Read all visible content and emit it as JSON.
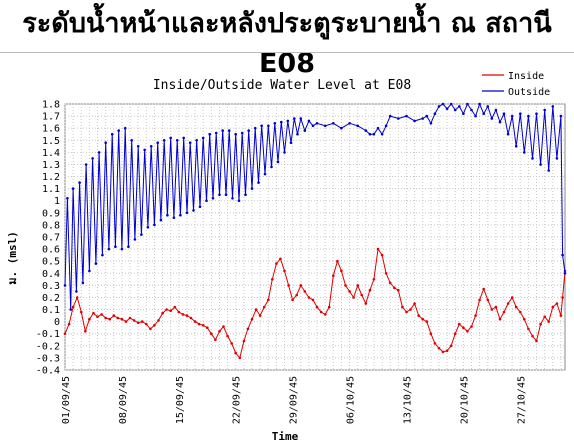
{
  "page": {
    "title": "ระดับน้ำหน้าและหลังประตูระบายน้ำ ณ สถานี E08"
  },
  "chart_data": {
    "type": "line",
    "title": "Inside/Outside Water Level at E08",
    "xlabel": "Time",
    "ylabel": "ม. (msl)",
    "ylim": [
      -0.4,
      1.8
    ],
    "y_ticks": [
      "-0.4",
      "-0.3",
      "-0.2",
      "-0.1",
      "0",
      "0.1",
      "0.2",
      "0.3",
      "0.4",
      "0.5",
      "0.6",
      "0.7",
      "0.8",
      "0.9",
      "1",
      "1.1",
      "1.2",
      "1.3",
      "1.4",
      "1.5",
      "1.6",
      "1.7",
      "1.8"
    ],
    "x_ticks": [
      "01/09/45",
      "08/09/45",
      "15/09/45",
      "22/09/45",
      "29/09/45",
      "06/10/45",
      "13/10/45",
      "20/10/45",
      "27/10/45"
    ],
    "x_range_days": [
      0,
      61.5
    ],
    "grid": true,
    "legend_position": "top-right",
    "series": [
      {
        "name": "Inside",
        "color": "#e00000",
        "points": [
          [
            0.0,
            -0.1
          ],
          [
            0.5,
            -0.02
          ],
          [
            1.0,
            0.12
          ],
          [
            1.5,
            0.2
          ],
          [
            2.0,
            0.08
          ],
          [
            2.5,
            -0.08
          ],
          [
            3.0,
            0.02
          ],
          [
            3.5,
            0.07
          ],
          [
            4.0,
            0.04
          ],
          [
            4.5,
            0.06
          ],
          [
            5.0,
            0.03
          ],
          [
            5.5,
            0.02
          ],
          [
            6.0,
            0.05
          ],
          [
            6.5,
            0.03
          ],
          [
            7.0,
            0.02
          ],
          [
            7.5,
            0.0
          ],
          [
            8.0,
            0.03
          ],
          [
            8.5,
            0.01
          ],
          [
            9.0,
            -0.01
          ],
          [
            9.5,
            0.0
          ],
          [
            10.0,
            -0.02
          ],
          [
            10.5,
            -0.06
          ],
          [
            11.0,
            -0.03
          ],
          [
            11.5,
            0.01
          ],
          [
            12.0,
            0.07
          ],
          [
            12.5,
            0.1
          ],
          [
            13.0,
            0.09
          ],
          [
            13.5,
            0.12
          ],
          [
            14.0,
            0.08
          ],
          [
            14.5,
            0.06
          ],
          [
            15.0,
            0.05
          ],
          [
            15.5,
            0.03
          ],
          [
            16.0,
            0.0
          ],
          [
            16.5,
            -0.02
          ],
          [
            17.0,
            -0.03
          ],
          [
            17.5,
            -0.05
          ],
          [
            18.0,
            -0.1
          ],
          [
            18.5,
            -0.15
          ],
          [
            19.0,
            -0.08
          ],
          [
            19.5,
            -0.04
          ],
          [
            20.0,
            -0.12
          ],
          [
            20.5,
            -0.18
          ],
          [
            21.0,
            -0.26
          ],
          [
            21.5,
            -0.3
          ],
          [
            22.0,
            -0.16
          ],
          [
            22.5,
            -0.06
          ],
          [
            23.0,
            0.02
          ],
          [
            23.5,
            0.1
          ],
          [
            24.0,
            0.05
          ],
          [
            24.5,
            0.12
          ],
          [
            25.0,
            0.18
          ],
          [
            25.5,
            0.35
          ],
          [
            26.0,
            0.48
          ],
          [
            26.5,
            0.52
          ],
          [
            27.0,
            0.42
          ],
          [
            27.5,
            0.3
          ],
          [
            28.0,
            0.18
          ],
          [
            28.5,
            0.22
          ],
          [
            29.0,
            0.3
          ],
          [
            29.5,
            0.25
          ],
          [
            30.0,
            0.2
          ],
          [
            30.5,
            0.18
          ],
          [
            31.0,
            0.12
          ],
          [
            31.5,
            0.08
          ],
          [
            32.0,
            0.06
          ],
          [
            32.5,
            0.12
          ],
          [
            33.0,
            0.38
          ],
          [
            33.5,
            0.5
          ],
          [
            34.0,
            0.42
          ],
          [
            34.5,
            0.3
          ],
          [
            35.0,
            0.25
          ],
          [
            35.5,
            0.2
          ],
          [
            36.0,
            0.3
          ],
          [
            36.5,
            0.22
          ],
          [
            37.0,
            0.15
          ],
          [
            37.5,
            0.26
          ],
          [
            38.0,
            0.35
          ],
          [
            38.5,
            0.6
          ],
          [
            39.0,
            0.55
          ],
          [
            39.5,
            0.4
          ],
          [
            40.0,
            0.32
          ],
          [
            40.5,
            0.28
          ],
          [
            41.0,
            0.26
          ],
          [
            41.5,
            0.12
          ],
          [
            42.0,
            0.08
          ],
          [
            42.5,
            0.1
          ],
          [
            43.0,
            0.15
          ],
          [
            43.5,
            0.05
          ],
          [
            44.0,
            0.02
          ],
          [
            44.5,
            0.0
          ],
          [
            45.0,
            -0.1
          ],
          [
            45.5,
            -0.18
          ],
          [
            46.0,
            -0.22
          ],
          [
            46.5,
            -0.25
          ],
          [
            47.0,
            -0.24
          ],
          [
            47.5,
            -0.2
          ],
          [
            48.0,
            -0.1
          ],
          [
            48.5,
            -0.02
          ],
          [
            49.0,
            -0.05
          ],
          [
            49.5,
            -0.08
          ],
          [
            50.0,
            -0.04
          ],
          [
            50.5,
            0.05
          ],
          [
            51.0,
            0.18
          ],
          [
            51.5,
            0.27
          ],
          [
            52.0,
            0.18
          ],
          [
            52.5,
            0.1
          ],
          [
            53.0,
            0.12
          ],
          [
            53.5,
            0.02
          ],
          [
            54.0,
            0.08
          ],
          [
            54.5,
            0.15
          ],
          [
            55.0,
            0.2
          ],
          [
            55.5,
            0.12
          ],
          [
            56.0,
            0.08
          ],
          [
            56.5,
            0.02
          ],
          [
            57.0,
            -0.06
          ],
          [
            57.5,
            -0.12
          ],
          [
            58.0,
            -0.16
          ],
          [
            58.5,
            -0.02
          ],
          [
            59.0,
            0.04
          ],
          [
            59.5,
            0.0
          ],
          [
            60.0,
            0.12
          ],
          [
            60.5,
            0.15
          ],
          [
            61.0,
            0.05
          ],
          [
            61.2,
            0.2
          ],
          [
            61.5,
            0.42
          ]
        ]
      },
      {
        "name": "Outside",
        "color": "#0000d0",
        "points": [
          [
            0.0,
            0.3
          ],
          [
            0.3,
            1.02
          ],
          [
            0.7,
            0.1
          ],
          [
            1.0,
            1.1
          ],
          [
            1.4,
            0.25
          ],
          [
            1.8,
            1.15
          ],
          [
            2.2,
            0.32
          ],
          [
            2.6,
            1.3
          ],
          [
            3.0,
            0.42
          ],
          [
            3.4,
            1.35
          ],
          [
            3.8,
            0.48
          ],
          [
            4.2,
            1.4
          ],
          [
            4.6,
            0.55
          ],
          [
            5.0,
            1.48
          ],
          [
            5.4,
            0.6
          ],
          [
            5.8,
            1.55
          ],
          [
            6.2,
            0.62
          ],
          [
            6.6,
            1.58
          ],
          [
            7.0,
            0.6
          ],
          [
            7.4,
            1.6
          ],
          [
            7.8,
            0.62
          ],
          [
            8.2,
            1.5
          ],
          [
            8.6,
            0.68
          ],
          [
            9.0,
            1.45
          ],
          [
            9.4,
            0.72
          ],
          [
            9.8,
            1.42
          ],
          [
            10.2,
            0.78
          ],
          [
            10.6,
            1.45
          ],
          [
            11.0,
            0.8
          ],
          [
            11.4,
            1.48
          ],
          [
            11.8,
            0.84
          ],
          [
            12.2,
            1.5
          ],
          [
            12.6,
            0.88
          ],
          [
            13.0,
            1.52
          ],
          [
            13.4,
            0.86
          ],
          [
            13.8,
            1.5
          ],
          [
            14.2,
            0.88
          ],
          [
            14.6,
            1.52
          ],
          [
            15.0,
            0.9
          ],
          [
            15.4,
            1.48
          ],
          [
            15.8,
            0.92
          ],
          [
            16.2,
            1.5
          ],
          [
            16.6,
            0.95
          ],
          [
            17.0,
            1.52
          ],
          [
            17.4,
            1.0
          ],
          [
            17.8,
            1.55
          ],
          [
            18.2,
            1.02
          ],
          [
            18.6,
            1.56
          ],
          [
            19.0,
            1.05
          ],
          [
            19.4,
            1.58
          ],
          [
            19.8,
            1.05
          ],
          [
            20.2,
            1.58
          ],
          [
            20.6,
            1.02
          ],
          [
            21.0,
            1.55
          ],
          [
            21.4,
            1.0
          ],
          [
            21.8,
            1.56
          ],
          [
            22.2,
            1.05
          ],
          [
            22.6,
            1.58
          ],
          [
            23.0,
            1.1
          ],
          [
            23.4,
            1.6
          ],
          [
            23.8,
            1.15
          ],
          [
            24.2,
            1.62
          ],
          [
            24.6,
            1.22
          ],
          [
            25.0,
            1.62
          ],
          [
            25.4,
            1.28
          ],
          [
            25.8,
            1.64
          ],
          [
            26.2,
            1.32
          ],
          [
            26.6,
            1.65
          ],
          [
            27.0,
            1.4
          ],
          [
            27.4,
            1.66
          ],
          [
            27.8,
            1.48
          ],
          [
            28.2,
            1.68
          ],
          [
            28.6,
            1.55
          ],
          [
            29.0,
            1.68
          ],
          [
            29.5,
            1.58
          ],
          [
            30.0,
            1.66
          ],
          [
            30.5,
            1.62
          ],
          [
            31.0,
            1.64
          ],
          [
            32.0,
            1.62
          ],
          [
            33.0,
            1.64
          ],
          [
            34.0,
            1.6
          ],
          [
            35.0,
            1.64
          ],
          [
            36.0,
            1.62
          ],
          [
            37.0,
            1.58
          ],
          [
            37.5,
            1.55
          ],
          [
            38.0,
            1.55
          ],
          [
            38.5,
            1.6
          ],
          [
            39.0,
            1.55
          ],
          [
            39.5,
            1.62
          ],
          [
            40.0,
            1.7
          ],
          [
            41.0,
            1.68
          ],
          [
            42.0,
            1.7
          ],
          [
            43.0,
            1.66
          ],
          [
            44.0,
            1.68
          ],
          [
            44.5,
            1.7
          ],
          [
            45.0,
            1.64
          ],
          [
            45.5,
            1.72
          ],
          [
            46.0,
            1.78
          ],
          [
            46.5,
            1.8
          ],
          [
            47.0,
            1.76
          ],
          [
            47.5,
            1.8
          ],
          [
            48.0,
            1.75
          ],
          [
            48.5,
            1.78
          ],
          [
            49.0,
            1.72
          ],
          [
            49.5,
            1.8
          ],
          [
            50.0,
            1.75
          ],
          [
            50.5,
            1.7
          ],
          [
            51.0,
            1.8
          ],
          [
            51.5,
            1.72
          ],
          [
            52.0,
            1.78
          ],
          [
            52.5,
            1.68
          ],
          [
            53.0,
            1.75
          ],
          [
            53.5,
            1.65
          ],
          [
            54.0,
            1.72
          ],
          [
            54.5,
            1.55
          ],
          [
            55.0,
            1.7
          ],
          [
            55.5,
            1.45
          ],
          [
            56.0,
            1.72
          ],
          [
            56.5,
            1.4
          ],
          [
            57.0,
            1.7
          ],
          [
            57.5,
            1.35
          ],
          [
            58.0,
            1.72
          ],
          [
            58.5,
            1.3
          ],
          [
            59.0,
            1.75
          ],
          [
            59.5,
            1.25
          ],
          [
            60.0,
            1.78
          ],
          [
            60.5,
            1.35
          ],
          [
            61.0,
            1.7
          ],
          [
            61.2,
            0.55
          ],
          [
            61.5,
            0.4
          ]
        ]
      }
    ]
  }
}
